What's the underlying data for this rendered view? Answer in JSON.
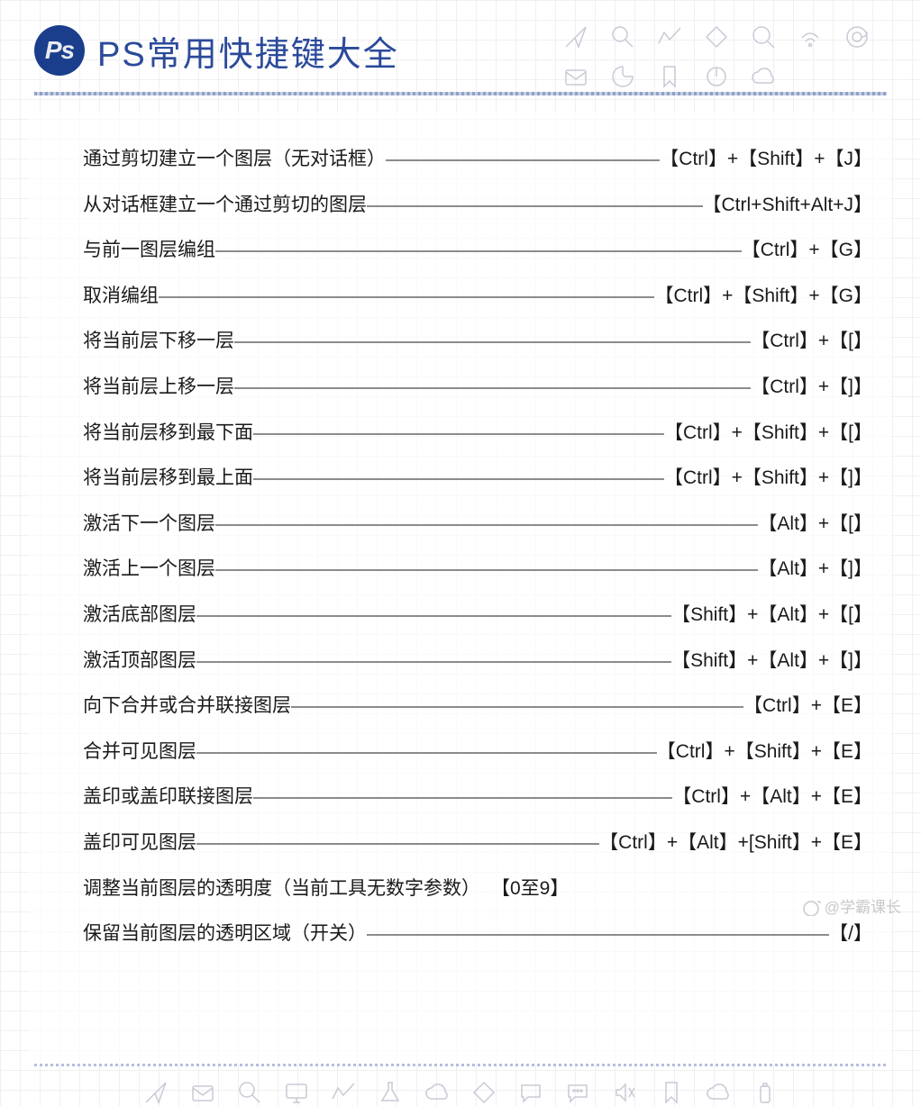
{
  "header": {
    "badge_text": "Ps",
    "title": "PS常用快捷键大全",
    "badge_bg": "#1b3e8c",
    "title_color": "#2b4a9a"
  },
  "shortcuts": [
    {
      "desc": "通过剪切建立一个图层（无对话框）",
      "key": "【Ctrl】+【Shift】+【J】"
    },
    {
      "desc": "从对话框建立一个通过剪切的图层",
      "key": "【Ctrl+Shift+Alt+J】"
    },
    {
      "desc": "与前一图层编组",
      "key": "【Ctrl】+【G】"
    },
    {
      "desc": "取消编组",
      "key": "【Ctrl】+【Shift】+【G】"
    },
    {
      "desc": "将当前层下移一层",
      "key": "【Ctrl】+【[】"
    },
    {
      "desc": "将当前层上移一层",
      "key": "【Ctrl】+【]】"
    },
    {
      "desc": "将当前层移到最下面",
      "key": "【Ctrl】+【Shift】+【[】"
    },
    {
      "desc": "将当前层移到最上面",
      "key": "【Ctrl】+【Shift】+【]】"
    },
    {
      "desc": "激活下一个图层",
      "key": "【Alt】+【[】"
    },
    {
      "desc": "激活上一个图层",
      "key": "【Alt】+【]】"
    },
    {
      "desc": "激活底部图层",
      "key": "【Shift】+【Alt】+【[】"
    },
    {
      "desc": "激活顶部图层",
      "key": "【Shift】+【Alt】+【]】"
    },
    {
      "desc": "向下合并或合并联接图层",
      "key": "【Ctrl】+【E】"
    },
    {
      "desc": "合并可见图层",
      "key": "【Ctrl】+【Shift】+【E】"
    },
    {
      "desc": "盖印或盖印联接图层",
      "key": "【Ctrl】+【Alt】+【E】"
    },
    {
      "desc": "盖印可见图层",
      "key": "【Ctrl】+【Alt】+[Shift】+【E】"
    },
    {
      "desc": "调整当前图层的透明度（当前工具无数字参数）",
      "key": "【0至9】",
      "nodash": true
    },
    {
      "desc": "保留当前图层的透明区域（开关）",
      "key": "【/】"
    }
  ],
  "watermark": "@学霸课长",
  "style": {
    "font_size_row": 21,
    "text_color": "#1a1a1a",
    "grid_color": "#f0f0f2",
    "icon_stroke": "#c8cad6",
    "card_bg": "rgba(255,255,255,.65)"
  }
}
